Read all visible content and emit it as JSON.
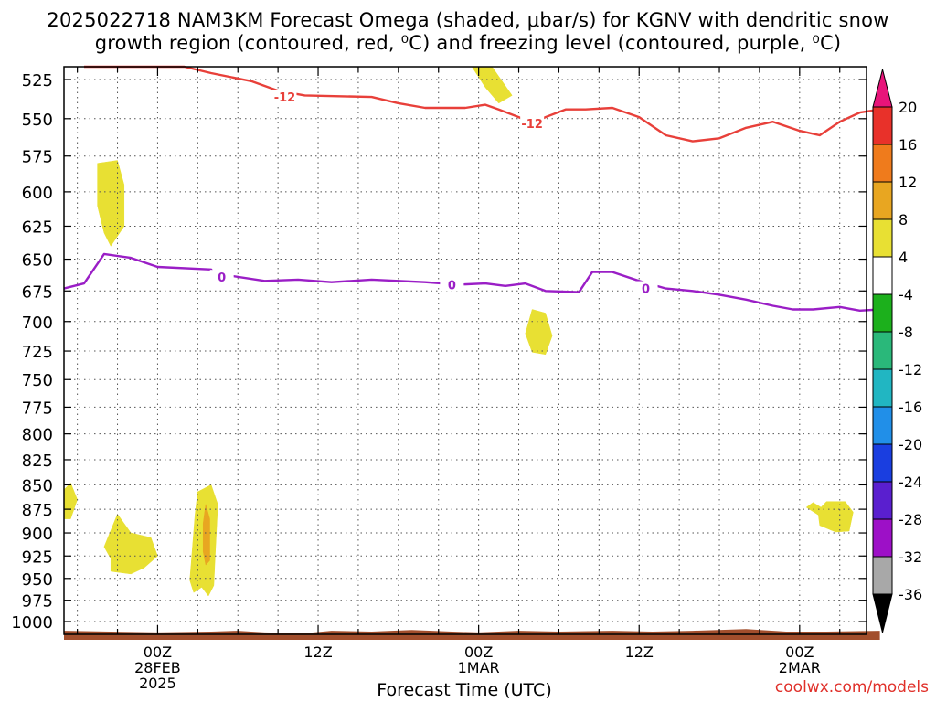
{
  "header": {
    "title_line1": "2025022718 NAM3KM Forecast Omega (shaded, μbar/s) for KGNV with dendritic snow",
    "title_line2": "growth region (contoured, red, ⁰C) and freezing level (contoured, purple, ⁰C)"
  },
  "footer": {
    "x_axis_title": "Forecast Time (UTC)",
    "credit": "coolwx.com/models"
  },
  "chart_data": {
    "type": "heatmap",
    "x_unit": "forecast hour from 2025-02-27 18Z",
    "x_range": [
      -1,
      59
    ],
    "y_range": [
      1000,
      510
    ],
    "y_scale": "pressure (hPa), plotted log-style, decreasing upward",
    "grid": true,
    "y_ticks": [
      525,
      550,
      575,
      600,
      625,
      650,
      675,
      700,
      725,
      750,
      775,
      800,
      825,
      850,
      875,
      900,
      925,
      950,
      975,
      1000
    ],
    "x_ticks": [
      {
        "hour": 6,
        "lines": [
          "00Z",
          "28FEB",
          "2025"
        ]
      },
      {
        "hour": 18,
        "lines": [
          "12Z"
        ]
      },
      {
        "hour": 30,
        "lines": [
          "00Z",
          "1MAR"
        ]
      },
      {
        "hour": 42,
        "lines": [
          "12Z"
        ]
      },
      {
        "hour": 54,
        "lines": [
          "00Z",
          "2MAR"
        ]
      }
    ],
    "colorbar": {
      "labels": [
        "20",
        "16",
        "12",
        "8",
        "4",
        "-4",
        "-8",
        "-12",
        "-16",
        "-20",
        "-24",
        "-28",
        "-32",
        "-36"
      ],
      "bands": [
        "#e8147a",
        "#e8312a",
        "#ef7b1c",
        "#e8a621",
        "#e8e033",
        "#ffffff",
        "#1cb01c",
        "#2ab87a",
        "#21b6c2",
        "#218fe8",
        "#1a3ee0",
        "#5a1fcf",
        "#9d10c7",
        "#a8a8a8",
        "#000000"
      ]
    },
    "series": [
      {
        "name": "-12",
        "color": "#e8403a",
        "label_points": [
          [
            15.5,
            536
          ],
          [
            34,
            553
          ]
        ],
        "points": [
          [
            0.5,
            510
          ],
          [
            4,
            510
          ],
          [
            8,
            512
          ],
          [
            10,
            521
          ],
          [
            13,
            526
          ],
          [
            15,
            532
          ],
          [
            17,
            535
          ],
          [
            22,
            536
          ],
          [
            24,
            540
          ],
          [
            26,
            543
          ],
          [
            29,
            543
          ],
          [
            30.5,
            541
          ],
          [
            31.5,
            544
          ],
          [
            33,
            549
          ],
          [
            34,
            553
          ],
          [
            35,
            549
          ],
          [
            36.5,
            544
          ],
          [
            38,
            544
          ],
          [
            40,
            543
          ],
          [
            42,
            549
          ],
          [
            44,
            561
          ],
          [
            46,
            565
          ],
          [
            48,
            563
          ],
          [
            50,
            556
          ],
          [
            52,
            552
          ],
          [
            54,
            558
          ],
          [
            55.5,
            561
          ],
          [
            57,
            552
          ],
          [
            58.5,
            546
          ],
          [
            60,
            544
          ]
        ]
      },
      {
        "name": "0",
        "color": "#9a1ec6",
        "label_points": [
          [
            10.8,
            664
          ],
          [
            28,
            670
          ],
          [
            42.5,
            673
          ]
        ],
        "points": [
          [
            -1,
            673
          ],
          [
            0.5,
            669
          ],
          [
            2,
            646
          ],
          [
            4,
            649
          ],
          [
            6,
            656
          ],
          [
            10,
            658
          ],
          [
            10.5,
            666
          ],
          [
            11.5,
            663
          ],
          [
            14,
            667
          ],
          [
            16.5,
            666
          ],
          [
            19,
            668
          ],
          [
            22,
            666
          ],
          [
            24,
            667
          ],
          [
            26,
            668
          ],
          [
            28.5,
            670
          ],
          [
            30.5,
            669
          ],
          [
            32,
            671
          ],
          [
            33.5,
            669
          ],
          [
            35,
            675
          ],
          [
            37.5,
            676
          ],
          [
            38.5,
            660
          ],
          [
            40,
            660
          ],
          [
            42,
            667
          ],
          [
            44,
            673
          ],
          [
            46,
            675
          ],
          [
            48,
            678
          ],
          [
            50,
            682
          ],
          [
            52,
            687
          ],
          [
            53.5,
            690
          ],
          [
            55,
            690
          ],
          [
            57,
            688
          ],
          [
            58.5,
            691
          ],
          [
            60,
            690
          ]
        ]
      }
    ],
    "omega_regions": [
      {
        "value": 4,
        "color": "#e8e033",
        "polygon": [
          [
            1.5,
            580
          ],
          [
            3,
            578
          ],
          [
            3.5,
            595
          ],
          [
            3.5,
            625
          ],
          [
            2.5,
            640
          ],
          [
            2,
            630
          ],
          [
            1.5,
            610
          ]
        ]
      },
      {
        "value": 4,
        "color": "#e8e033",
        "polygon": [
          [
            29.5,
            508
          ],
          [
            31,
            508
          ],
          [
            32.5,
            535
          ],
          [
            31.5,
            540
          ],
          [
            30.5,
            530
          ]
        ]
      },
      {
        "value": 4,
        "color": "#e8e033",
        "polygon": [
          [
            34,
            690
          ],
          [
            35,
            693
          ],
          [
            35.5,
            712
          ],
          [
            35,
            728
          ],
          [
            34,
            726
          ],
          [
            33.5,
            710
          ]
        ]
      },
      {
        "value": 4,
        "color": "#e8e033",
        "polygon": [
          [
            -1,
            855
          ],
          [
            -0.5,
            848
          ],
          [
            0,
            865
          ],
          [
            -0.5,
            885
          ],
          [
            -1,
            885
          ]
        ]
      },
      {
        "value": 4,
        "color": "#e8e033",
        "polygon": [
          [
            3,
            880
          ],
          [
            4,
            900
          ],
          [
            5.5,
            905
          ],
          [
            6,
            925
          ],
          [
            5,
            938
          ],
          [
            4,
            945
          ],
          [
            2.5,
            942
          ],
          [
            2.5,
            928
          ],
          [
            2,
            915
          ]
        ]
      },
      {
        "value": 4,
        "color": "#e8e033",
        "polygon": [
          [
            9,
            857
          ],
          [
            10,
            850
          ],
          [
            10.5,
            870
          ],
          [
            10.3,
            925
          ],
          [
            10.2,
            958
          ],
          [
            9.8,
            970
          ],
          [
            9.3,
            960
          ],
          [
            8.7,
            966
          ],
          [
            8.4,
            952
          ],
          [
            8.5,
            935
          ],
          [
            8.8,
            880
          ]
        ]
      },
      {
        "value": 8,
        "color": "#e8a621",
        "polygon": [
          [
            9.6,
            870
          ],
          [
            9.9,
            885
          ],
          [
            9.9,
            930
          ],
          [
            9.6,
            935
          ],
          [
            9.4,
            920
          ],
          [
            9.4,
            890
          ]
        ]
      },
      {
        "value": 4,
        "color": "#e8e033",
        "polygon": [
          [
            55,
            868
          ],
          [
            55.6,
            873
          ],
          [
            56,
            867
          ],
          [
            57.4,
            867
          ],
          [
            58,
            878
          ],
          [
            57.7,
            898
          ],
          [
            56.7,
            899
          ],
          [
            55.5,
            892
          ],
          [
            55.4,
            881
          ],
          [
            54.5,
            873
          ]
        ]
      }
    ],
    "terrain": {
      "color": "#a24e2c",
      "points": [
        [
          -1,
          1011
        ],
        [
          6,
          1013
        ],
        [
          10,
          1012
        ],
        [
          12,
          1011
        ],
        [
          14,
          1013
        ],
        [
          17,
          1014
        ],
        [
          19,
          1011
        ],
        [
          22,
          1012
        ],
        [
          25,
          1010
        ],
        [
          28,
          1012
        ],
        [
          30,
          1013
        ],
        [
          33,
          1011
        ],
        [
          36,
          1012
        ],
        [
          40,
          1011
        ],
        [
          43,
          1012
        ],
        [
          46,
          1011
        ],
        [
          50,
          1009
        ],
        [
          53,
          1012
        ],
        [
          56,
          1012
        ],
        [
          60,
          1011
        ]
      ],
      "bottom": 1022
    }
  }
}
